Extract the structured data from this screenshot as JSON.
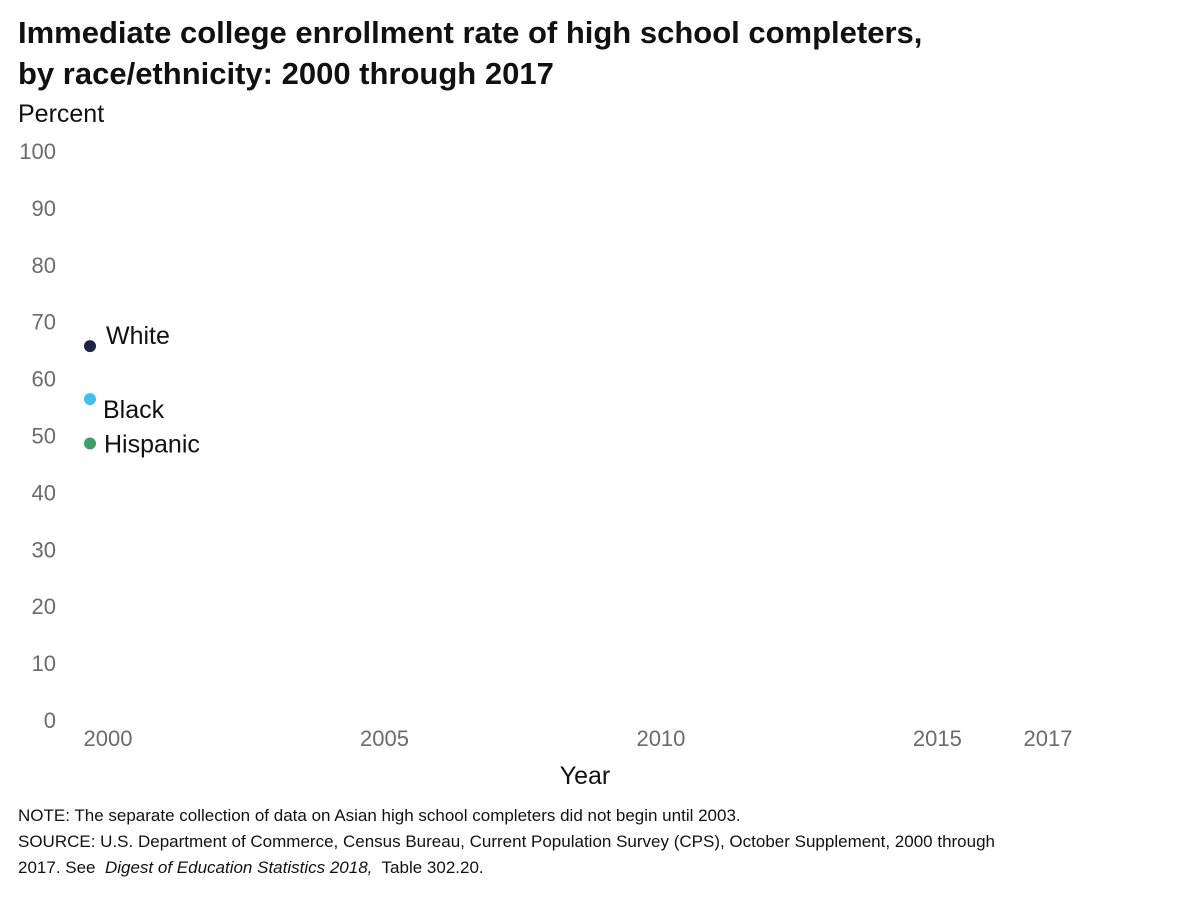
{
  "title_line1": "Immediate college enrollment rate of high school completers,",
  "title_line2": "by race/ethnicity: 2000 through 2017",
  "footer": {
    "note": "NOTE: The separate collection of data on Asian high school completers did not begin until 2003.",
    "source_line1": "SOURCE: U.S. Department of Commerce, Census Bureau, Current Population Survey (CPS), October Supplement, 2000 through",
    "source_line2_pre": "2017. See",
    "source_line2_italic": "Digest of Education Statistics 2018,",
    "source_line2_post": "Table 302.20."
  },
  "chart_data": {
    "type": "scatter",
    "title": "Immediate college enrollment rate of high school completers, by race/ethnicity: 2000 through 2017",
    "xlabel": "Year",
    "ylabel": "Percent",
    "xlim": [
      2000,
      2017
    ],
    "ylim": [
      0,
      100
    ],
    "x_ticks": [
      2000,
      2005,
      2010,
      2015,
      2017
    ],
    "y_ticks": [
      0,
      10,
      20,
      30,
      40,
      50,
      60,
      70,
      80,
      90,
      100
    ],
    "grid": false,
    "series": [
      {
        "name": "White",
        "color": "#1f2349",
        "points": [
          {
            "x": 2000,
            "y": 65.7
          }
        ]
      },
      {
        "name": "Black",
        "color": "#3fc0ef",
        "points": [
          {
            "x": 2000,
            "y": 56.4
          }
        ]
      },
      {
        "name": "Hispanic",
        "color": "#3f9f6a",
        "points": [
          {
            "x": 2000,
            "y": 48.6
          }
        ]
      }
    ]
  }
}
